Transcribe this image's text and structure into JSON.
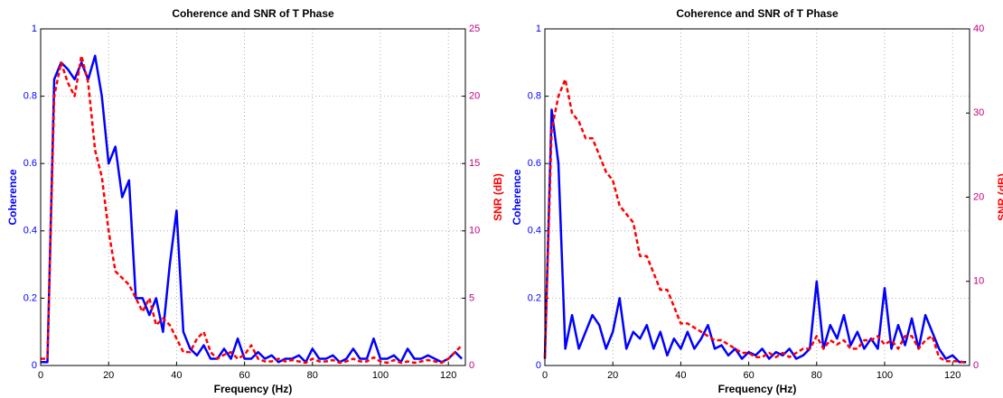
{
  "chart_data": [
    {
      "type": "line",
      "title": "Coherence and SNR of T Phase",
      "x_label": "Frequency (Hz)",
      "y_label": "Coherence",
      "y2_label": "SNR (dB)",
      "x": [
        0,
        2,
        4,
        6,
        8,
        10,
        12,
        14,
        16,
        18,
        20,
        22,
        24,
        26,
        28,
        30,
        32,
        34,
        36,
        38,
        40,
        42,
        44,
        46,
        48,
        50,
        52,
        54,
        56,
        58,
        60,
        62,
        64,
        66,
        68,
        70,
        72,
        74,
        76,
        78,
        80,
        82,
        84,
        86,
        88,
        90,
        92,
        94,
        96,
        98,
        100,
        102,
        104,
        106,
        108,
        110,
        112,
        114,
        116,
        118,
        120,
        122,
        124
      ],
      "series": [
        {
          "color": "#0000ff",
          "values": [
            0.01,
            0.01,
            0.85,
            0.9,
            0.88,
            0.85,
            0.9,
            0.85,
            0.92,
            0.8,
            0.6,
            0.65,
            0.5,
            0.55,
            0.2,
            0.2,
            0.15,
            0.2,
            0.1,
            0.3,
            0.46,
            0.1,
            0.05,
            0.03,
            0.06,
            0.02,
            0.02,
            0.05,
            0.02,
            0.08,
            0.02,
            0.02,
            0.04,
            0.02,
            0.03,
            0.01,
            0.02,
            0.02,
            0.03,
            0.01,
            0.05,
            0.02,
            0.02,
            0.03,
            0.01,
            0.02,
            0.05,
            0.02,
            0.02,
            0.08,
            0.02,
            0.02,
            0.03,
            0.01,
            0.05,
            0.02,
            0.02,
            0.03,
            0.02,
            0.01,
            0.02,
            0.04,
            0.02
          ]
        },
        {
          "color": "#ff0000",
          "axis": "y2",
          "dashed": true,
          "values": [
            0.5,
            0.5,
            20,
            22.5,
            21,
            20,
            23,
            21,
            16,
            14,
            10,
            7,
            6.5,
            6,
            5,
            4,
            5,
            3,
            3.5,
            3,
            2,
            1,
            1,
            2,
            2.5,
            1,
            0.5,
            0.8,
            1,
            0.5,
            0.8,
            1.5,
            0.5,
            0.3,
            0.3,
            0.5,
            0.3,
            0.4,
            0.3,
            0.2,
            0.5,
            0.3,
            0.3,
            0.4,
            0.2,
            0.3,
            0.5,
            0.3,
            0.3,
            0.6,
            0.3,
            0.2,
            0.4,
            0.2,
            0.3,
            0.2,
            0.3,
            0.4,
            0.3,
            0.2,
            0.5,
            1,
            1.5
          ]
        }
      ],
      "xlim": [
        0,
        125
      ],
      "xticks": [
        0,
        20,
        40,
        60,
        80,
        100,
        120
      ],
      "ylim": [
        0,
        1
      ],
      "yticks": [
        0,
        0.2,
        0.4,
        0.6,
        0.8,
        1
      ],
      "y2lim": [
        0,
        25
      ],
      "y2ticks": [
        0,
        5,
        10,
        15,
        20,
        25
      ],
      "grid": true
    },
    {
      "type": "line",
      "title": "Coherence and SNR of T Phase",
      "x_label": "Frequency (Hz)",
      "y_label": "Coherence",
      "y2_label": "SNR (dB)",
      "x": [
        0,
        2,
        4,
        6,
        8,
        10,
        12,
        14,
        16,
        18,
        20,
        22,
        24,
        26,
        28,
        30,
        32,
        34,
        36,
        38,
        40,
        42,
        44,
        46,
        48,
        50,
        52,
        54,
        56,
        58,
        60,
        62,
        64,
        66,
        68,
        70,
        72,
        74,
        76,
        78,
        80,
        82,
        84,
        86,
        88,
        90,
        92,
        94,
        96,
        98,
        100,
        102,
        104,
        106,
        108,
        110,
        112,
        114,
        116,
        118,
        120,
        122,
        124
      ],
      "series": [
        {
          "color": "#0000ff",
          "values": [
            0.02,
            0.76,
            0.6,
            0.05,
            0.15,
            0.05,
            0.1,
            0.15,
            0.12,
            0.05,
            0.1,
            0.2,
            0.05,
            0.1,
            0.08,
            0.12,
            0.05,
            0.1,
            0.03,
            0.08,
            0.05,
            0.1,
            0.05,
            0.08,
            0.12,
            0.05,
            0.06,
            0.03,
            0.05,
            0.02,
            0.04,
            0.03,
            0.05,
            0.02,
            0.04,
            0.03,
            0.05,
            0.02,
            0.03,
            0.05,
            0.25,
            0.05,
            0.12,
            0.08,
            0.15,
            0.06,
            0.1,
            0.05,
            0.08,
            0.05,
            0.23,
            0.05,
            0.12,
            0.06,
            0.14,
            0.05,
            0.15,
            0.1,
            0.05,
            0.02,
            0.03,
            0.01,
            0.01
          ]
        },
        {
          "color": "#ff0000",
          "axis": "y2",
          "dashed": true,
          "values": [
            1,
            28,
            32,
            34,
            30,
            29,
            27,
            27,
            25,
            23,
            22,
            19,
            18,
            17,
            13,
            13,
            11,
            9,
            9,
            7,
            5,
            5,
            4.5,
            4,
            3.5,
            3,
            3,
            2.5,
            2,
            1.5,
            1.5,
            1,
            1,
            1.5,
            1,
            1.5,
            1,
            1.5,
            2,
            2,
            3.5,
            2,
            3,
            2.5,
            3,
            2,
            2,
            3,
            3,
            3.5,
            2.5,
            3,
            2,
            3.5,
            3.5,
            2,
            3,
            3.5,
            1,
            0.5,
            0.5,
            0.5,
            0.3
          ]
        }
      ],
      "xlim": [
        0,
        125
      ],
      "xticks": [
        0,
        20,
        40,
        60,
        80,
        100,
        120
      ],
      "ylim": [
        0,
        1
      ],
      "yticks": [
        0,
        0.2,
        0.4,
        0.6,
        0.8,
        1
      ],
      "y2lim": [
        0,
        40
      ],
      "y2ticks": [
        0,
        10,
        20,
        30,
        40
      ],
      "grid": true
    }
  ]
}
